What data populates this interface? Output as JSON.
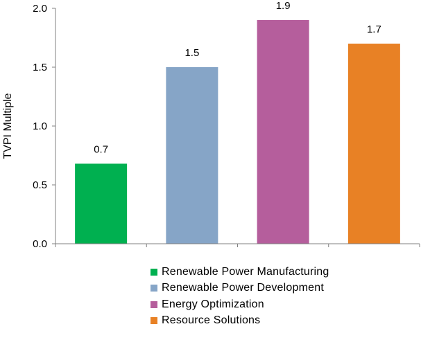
{
  "chart_data": {
    "type": "bar",
    "title": "",
    "xlabel": "",
    "ylabel": "TVPI Multiple",
    "ylim": [
      0,
      2.0
    ],
    "yticks": [
      "0.0",
      "0.5",
      "1.0",
      "1.5",
      "2.0"
    ],
    "ytick_values": [
      0,
      0.5,
      1.0,
      1.5,
      2.0
    ],
    "grid": false,
    "legend_position": "bottom",
    "categories": [
      "Renewable Power Manufacturing",
      "Renewable Power Development",
      "Energy Optimization",
      "Resource Solutions"
    ],
    "values": [
      0.68,
      1.5,
      1.9,
      1.7
    ],
    "data_labels": [
      "0.7",
      "1.5",
      "1.9",
      "1.7"
    ],
    "colors": [
      "#00b050",
      "#86a5c7",
      "#b55e9c",
      "#e88125"
    ]
  }
}
